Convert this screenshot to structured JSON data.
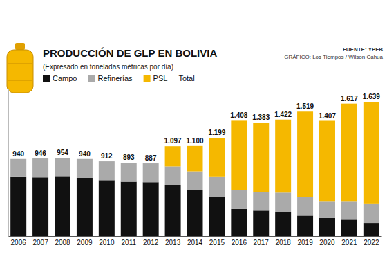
{
  "chart_data": {
    "type": "bar",
    "stacked": true,
    "data_labels": true,
    "tick_labels": "x",
    "title": "PRODUCCIÓN DE GLP EN BOLIVIA",
    "subtitle": "(Expresado en toneladas métricas por día)",
    "annotations": [
      "FUENTE: YPFB",
      "GRÁFICO: Los Tiempos / Wilson Cahua"
    ],
    "categories": [
      "2006",
      "2007",
      "2008",
      "2009",
      "2010",
      "2011",
      "2012",
      "2013",
      "2014",
      "2015",
      "2016",
      "2017",
      "2018",
      "2019",
      "2020",
      "2021",
      "2022"
    ],
    "ylim": [
      0,
      1800
    ],
    "series": [
      {
        "name": "Campo",
        "color": "#111111",
        "values": [
          720,
          716,
          724,
          710,
          682,
          663,
          657,
          620,
          560,
          480,
          330,
          310,
          290,
          250,
          220,
          200,
          160
        ]
      },
      {
        "name": "Refinerías",
        "color": "#aaaaaa",
        "values": [
          220,
          230,
          230,
          230,
          230,
          230,
          230,
          230,
          230,
          240,
          230,
          230,
          240,
          230,
          200,
          220,
          230
        ]
      },
      {
        "name": "PSL",
        "color": "#f5b800",
        "values": [
          0,
          0,
          0,
          0,
          0,
          0,
          0,
          247,
          310,
          479,
          848,
          843,
          892,
          1039,
          987,
          1197,
          1249
        ]
      },
      {
        "name": "Total",
        "type": "text",
        "values": [
          940,
          946,
          954,
          940,
          912,
          893,
          887,
          1097,
          1100,
          1199,
          1408,
          1383,
          1422,
          1519,
          1407,
          1617,
          1639
        ],
        "value_labels": [
          "940",
          "946",
          "954",
          "940",
          "912",
          "893",
          "887",
          "1.097",
          "1.100",
          "1.199",
          "1.408",
          "1.383",
          "1.422",
          "1.519",
          "1.407",
          "1.617",
          "1.639"
        ]
      }
    ]
  }
}
